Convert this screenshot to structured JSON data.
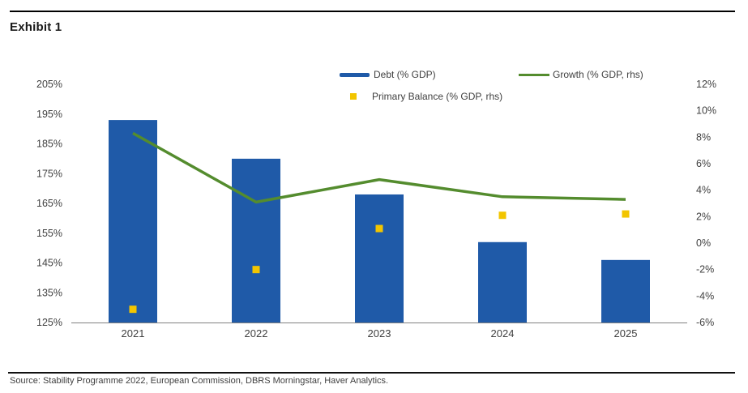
{
  "header": {
    "title": "Exhibit 1"
  },
  "footer": {
    "source": "Source: Stability Programme 2022, European Commission, DBRS Morningstar, Haver Analytics."
  },
  "colors": {
    "debt_blue": "#1F5AA8",
    "growth_green": "#548C2E",
    "primary_balance_yellow": "#F2C500",
    "axis_gray": "#808080",
    "label_gray": "#404040",
    "rule_black": "#000000"
  },
  "chart_data": {
    "type": "bar",
    "subtype": "combo-bar-line-scatter",
    "title": "Exhibit 1",
    "categories": [
      "2021",
      "2022",
      "2023",
      "2024",
      "2025"
    ],
    "series": [
      {
        "name": "Debt (% GDP)",
        "type": "bar",
        "axis": "left",
        "color": "#1F5AA8",
        "values": [
          193,
          180,
          168,
          152,
          146
        ]
      },
      {
        "name": "Growth (% GDP, rhs)",
        "type": "line",
        "axis": "right",
        "color": "#548C2E",
        "values": [
          8.3,
          3.1,
          4.8,
          3.5,
          3.3
        ]
      },
      {
        "name": "Primary Balance (% GDP, rhs)",
        "type": "scatter",
        "axis": "right",
        "color": "#F2C500",
        "values": [
          -5.0,
          -2.0,
          1.1,
          2.1,
          2.2
        ]
      }
    ],
    "left_axis": {
      "min": 125,
      "max": 205,
      "step": 10,
      "unit": "%",
      "tick_labels": [
        "205%",
        "195%",
        "185%",
        "175%",
        "165%",
        "155%",
        "145%",
        "135%",
        "125%"
      ]
    },
    "right_axis": {
      "min": -6,
      "max": 12,
      "step": 2,
      "unit": "%",
      "tick_labels": [
        "12%",
        "10%",
        "8%",
        "6%",
        "4%",
        "2%",
        "0%",
        "-2%",
        "-4%",
        "-6%"
      ]
    },
    "grid": false,
    "legend_position": "top-center"
  }
}
